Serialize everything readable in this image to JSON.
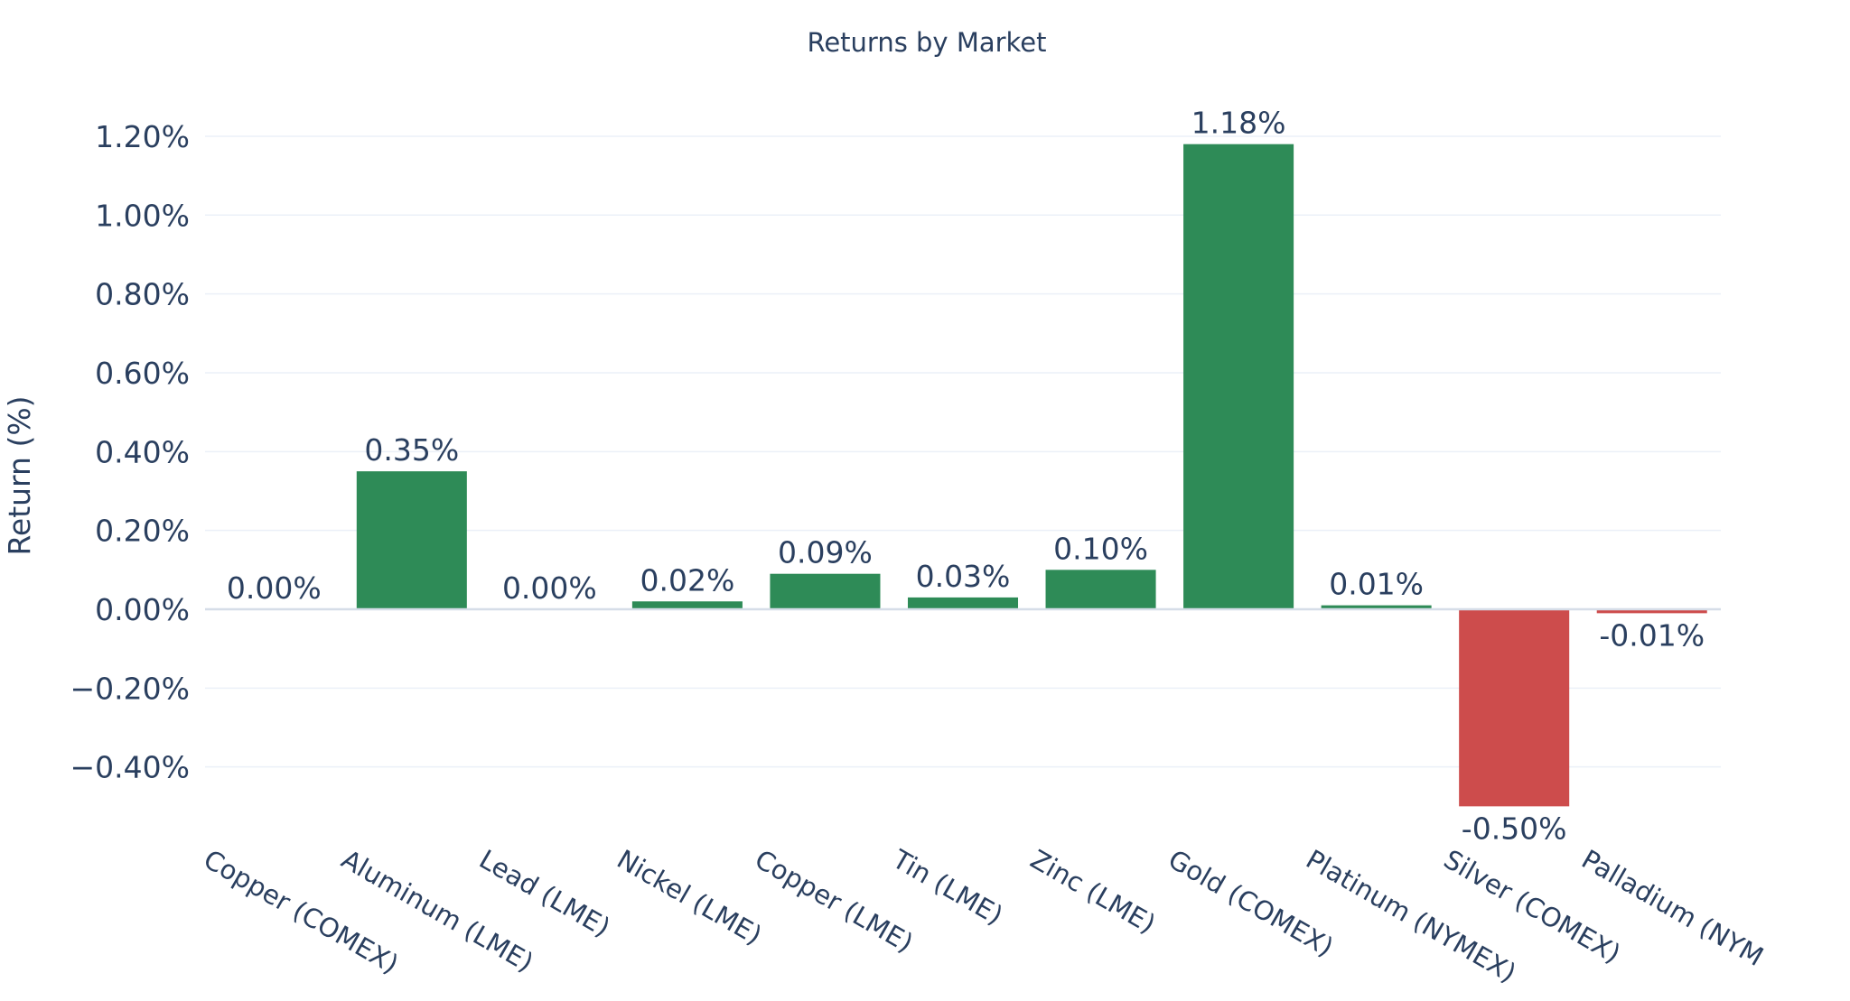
{
  "chart_data": {
    "type": "bar",
    "title": "Returns by Market",
    "xlabel": "",
    "ylabel": "Return (%)",
    "categories": [
      "Copper (COMEX)",
      "Aluminum (LME)",
      "Lead (LME)",
      "Nickel (LME)",
      "Copper (LME)",
      "Tin (LME)",
      "Zinc (LME)",
      "Gold (COMEX)",
      "Platinum (NYMEX)",
      "Silver (COMEX)",
      "Palladium (NYM"
    ],
    "values": [
      0.0,
      0.35,
      0.0,
      0.02,
      0.09,
      0.03,
      0.1,
      1.18,
      0.01,
      -0.5,
      -0.01
    ],
    "data_labels": [
      "0.00%",
      "0.35%",
      "0.00%",
      "0.02%",
      "0.09%",
      "0.03%",
      "0.10%",
      "1.18%",
      "0.01%",
      "-0.50%",
      "-0.01%"
    ],
    "yticks": [
      -0.4,
      -0.2,
      0,
      0.2,
      0.4,
      0.6,
      0.8,
      1.0,
      1.2
    ],
    "ytick_labels": [
      "−0.40%",
      "−0.20%",
      "0.00%",
      "0.20%",
      "0.40%",
      "0.60%",
      "0.80%",
      "1.00%",
      "1.20%"
    ],
    "ylim": [
      -0.58,
      1.3
    ],
    "grid": true,
    "legend": "none",
    "colors": {
      "positive": "#2e8b57",
      "negative": "#cd4c4c",
      "text": "#2a3f5f",
      "grid": "#ebf0f8"
    }
  }
}
